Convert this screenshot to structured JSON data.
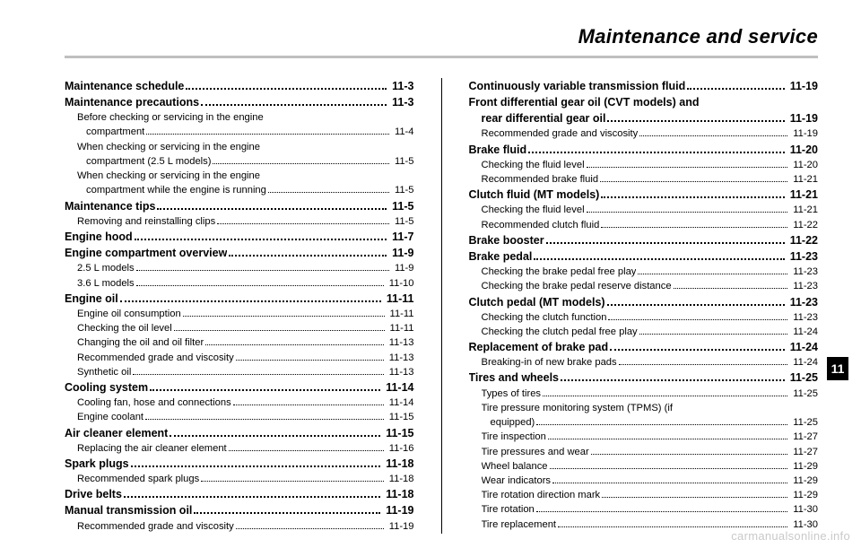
{
  "title": "Maintenance and service",
  "chapter_tab": "11",
  "watermark": "carmanualsonline.info",
  "left": [
    {
      "lvl": 0,
      "t": "Maintenance schedule",
      "p": "11-3"
    },
    {
      "lvl": 0,
      "t": "Maintenance precautions",
      "p": "11-3"
    },
    {
      "lvl": 1,
      "t": "Before checking or servicing in the engine"
    },
    {
      "lvl": "1c",
      "t": "compartment",
      "p": "11-4"
    },
    {
      "lvl": 1,
      "t": "When checking or servicing in the engine"
    },
    {
      "lvl": "1c",
      "t": "compartment (2.5 L models)",
      "p": "11-5"
    },
    {
      "lvl": 1,
      "t": "When checking or servicing in the engine"
    },
    {
      "lvl": "1c",
      "t": "compartment while the engine is running",
      "p": "11-5"
    },
    {
      "lvl": 0,
      "t": "Maintenance tips",
      "p": "11-5"
    },
    {
      "lvl": 1,
      "t": "Removing and reinstalling clips",
      "p": "11-5"
    },
    {
      "lvl": 0,
      "t": "Engine hood",
      "p": "11-7"
    },
    {
      "lvl": 0,
      "t": "Engine compartment overview",
      "p": "11-9"
    },
    {
      "lvl": 1,
      "t": "2.5 L models",
      "p": "11-9"
    },
    {
      "lvl": 1,
      "t": "3.6 L models",
      "p": "11-10"
    },
    {
      "lvl": 0,
      "t": "Engine oil",
      "p": "11-11"
    },
    {
      "lvl": 1,
      "t": "Engine oil consumption",
      "p": "11-11"
    },
    {
      "lvl": 1,
      "t": "Checking the oil level",
      "p": "11-11"
    },
    {
      "lvl": 1,
      "t": "Changing the oil and oil filter",
      "p": "11-13"
    },
    {
      "lvl": 1,
      "t": "Recommended grade and viscosity",
      "p": "11-13"
    },
    {
      "lvl": 1,
      "t": "Synthetic oil",
      "p": "11-13"
    },
    {
      "lvl": 0,
      "t": "Cooling system",
      "p": "11-14"
    },
    {
      "lvl": 1,
      "t": "Cooling fan, hose and connections",
      "p": "11-14"
    },
    {
      "lvl": 1,
      "t": "Engine coolant",
      "p": "11-15"
    },
    {
      "lvl": 0,
      "t": "Air cleaner element",
      "p": "11-15"
    },
    {
      "lvl": 1,
      "t": "Replacing the air cleaner element",
      "p": "11-16"
    },
    {
      "lvl": 0,
      "t": "Spark plugs",
      "p": "11-18"
    },
    {
      "lvl": 1,
      "t": "Recommended spark plugs",
      "p": "11-18"
    },
    {
      "lvl": 0,
      "t": "Drive belts",
      "p": "11-18"
    },
    {
      "lvl": 0,
      "t": "Manual transmission oil",
      "p": "11-19"
    },
    {
      "lvl": 1,
      "t": "Recommended grade and viscosity",
      "p": "11-19"
    }
  ],
  "right": [
    {
      "lvl": 0,
      "t": "Continuously variable transmission fluid",
      "p": "11-19"
    },
    {
      "lvl": 0,
      "t": "Front differential gear oil (CVT models) and"
    },
    {
      "lvl": "0c",
      "t": "rear differential gear oil",
      "p": "11-19"
    },
    {
      "lvl": 1,
      "t": "Recommended grade and viscosity",
      "p": "11-19"
    },
    {
      "lvl": 0,
      "t": "Brake fluid",
      "p": "11-20"
    },
    {
      "lvl": 1,
      "t": "Checking the fluid level",
      "p": "11-20"
    },
    {
      "lvl": 1,
      "t": "Recommended brake fluid",
      "p": "11-21"
    },
    {
      "lvl": 0,
      "t": "Clutch fluid (MT models)",
      "p": "11-21"
    },
    {
      "lvl": 1,
      "t": "Checking the fluid level",
      "p": "11-21"
    },
    {
      "lvl": 1,
      "t": "Recommended clutch fluid",
      "p": "11-22"
    },
    {
      "lvl": 0,
      "t": "Brake booster",
      "p": "11-22"
    },
    {
      "lvl": 0,
      "t": "Brake pedal",
      "p": "11-23"
    },
    {
      "lvl": 1,
      "t": "Checking the brake pedal free play",
      "p": "11-23"
    },
    {
      "lvl": 1,
      "t": "Checking the brake pedal reserve distance",
      "p": "11-23"
    },
    {
      "lvl": 0,
      "t": "Clutch pedal (MT models)",
      "p": "11-23"
    },
    {
      "lvl": 1,
      "t": "Checking the clutch function",
      "p": "11-23"
    },
    {
      "lvl": 1,
      "t": "Checking the clutch pedal free play",
      "p": "11-24"
    },
    {
      "lvl": 0,
      "t": "Replacement of brake pad",
      "p": "11-24"
    },
    {
      "lvl": 1,
      "t": "Breaking-in of new brake pads",
      "p": "11-24"
    },
    {
      "lvl": 0,
      "t": "Tires and wheels",
      "p": "11-25"
    },
    {
      "lvl": 1,
      "t": "Types of tires",
      "p": "11-25"
    },
    {
      "lvl": 1,
      "t": "Tire pressure monitoring system (TPMS) (if"
    },
    {
      "lvl": "1c",
      "t": "equipped)",
      "p": "11-25"
    },
    {
      "lvl": 1,
      "t": "Tire inspection",
      "p": "11-27"
    },
    {
      "lvl": 1,
      "t": "Tire pressures and wear",
      "p": "11-27"
    },
    {
      "lvl": 1,
      "t": "Wheel balance",
      "p": "11-29"
    },
    {
      "lvl": 1,
      "t": "Wear indicators",
      "p": "11-29"
    },
    {
      "lvl": 1,
      "t": "Tire rotation direction mark",
      "p": "11-29"
    },
    {
      "lvl": 1,
      "t": "Tire rotation",
      "p": "11-30"
    },
    {
      "lvl": 1,
      "t": "Tire replacement",
      "p": "11-30"
    }
  ]
}
